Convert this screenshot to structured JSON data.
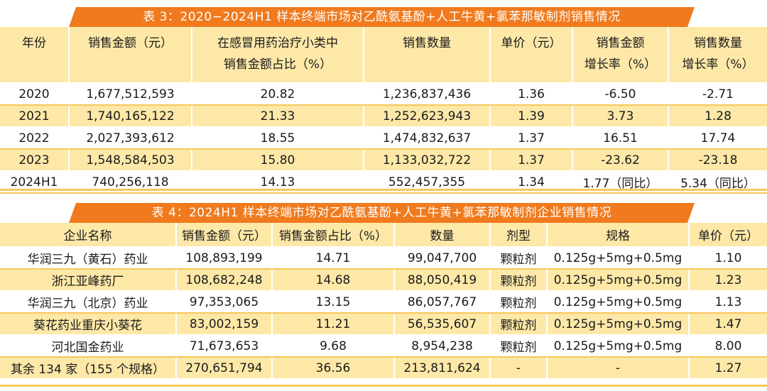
{
  "table3": {
    "title": "表 3：2020−2024H1 样本终端市场对乙酰氨基酚+人工牛黄+氯苯那敏制剂销售情况",
    "headers": [
      [
        "年份",
        ""
      ],
      [
        "销售金额（元）",
        ""
      ],
      [
        "在感冒用药治疗小类中",
        "销售金额占比（%）"
      ],
      [
        "销售数量",
        ""
      ],
      [
        "单价（元）",
        ""
      ],
      [
        "销售金额",
        "增长率（%）"
      ],
      [
        "销售数量",
        "增长率（%）"
      ]
    ],
    "rows": [
      [
        "2020",
        "1,677,512,593",
        "20.82",
        "1,236,837,436",
        "1.36",
        "-6.50",
        "-2.71"
      ],
      [
        "2021",
        "1,740,165,122",
        "21.33",
        "1,252,623,943",
        "1.39",
        "3.73",
        "1.28"
      ],
      [
        "2022",
        "2,027,393,612",
        "18.55",
        "1,474,832,637",
        "1.37",
        "16.51",
        "17.74"
      ],
      [
        "2023",
        "1,548,584,503",
        "15.80",
        "1,133,032,722",
        "1.37",
        "-23.62",
        "-23.18"
      ],
      [
        "2024H1",
        "740,256,118",
        "14.13",
        "552,457,355",
        "1.34",
        "1.77（同比）",
        "5.34（同比）"
      ]
    ]
  },
  "table4": {
    "title": "表 4：2024H1 样本终端市场对乙酰氨基酚+人工牛黄+氯苯那敏制剂企业销售情况",
    "headers": [
      "企业名称",
      "销售金额（元）",
      "销售金额占比（%）",
      "数量",
      "剂型",
      "规格",
      "单价（元）"
    ],
    "rows": [
      [
        "华润三九（黄石）药业",
        "108,893,199",
        "14.71",
        "99,047,700",
        "颗粒剂",
        "0.125g+5mg+0.5mg",
        "1.10"
      ],
      [
        "浙江亚峰药厂",
        "108,682,248",
        "14.68",
        "88,050,419",
        "颗粒剂",
        "0.125g+5mg+0.5mg",
        "1.23"
      ],
      [
        "华润三九（北京）药业",
        "97,353,065",
        "13.15",
        "86,057,767",
        "颗粒剂",
        "0.125g+5mg+0.5mg",
        "1.13"
      ],
      [
        "葵花药业重庆小葵花",
        "83,002,159",
        "11.21",
        "56,535,607",
        "颗粒剂",
        "0.125g+5mg+0.5mg",
        "1.47"
      ],
      [
        "河北国金药业",
        "71,673,653",
        "9.68",
        "8,954,238",
        "颗粒剂",
        "0.125g+5mg+0.5mg",
        "8.00"
      ],
      [
        "其余 134 家（155 个规格）",
        "270,651,794",
        "36.56",
        "213,811,624",
        "-",
        "-",
        "1.27"
      ]
    ]
  },
  "colors": {
    "banner": "#f07a1d",
    "header_fill": "#fde8a8",
    "stripe": "#fde8a8",
    "rule": "#f7c85a"
  }
}
